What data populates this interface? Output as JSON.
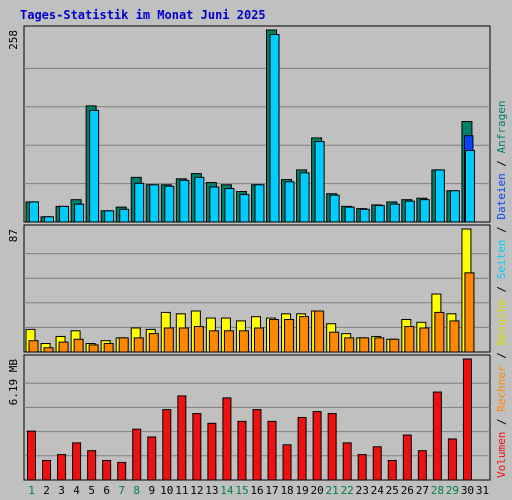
{
  "chart_data": {
    "type": "bar",
    "title": "Tages-Statistik im Monat Juni 2025",
    "days": [
      "1",
      "2",
      "3",
      "4",
      "5",
      "6",
      "7",
      "8",
      "9",
      "10",
      "11",
      "12",
      "13",
      "14",
      "15",
      "16",
      "17",
      "18",
      "19",
      "20",
      "21",
      "22",
      "23",
      "24",
      "25",
      "26",
      "27",
      "28",
      "29",
      "30",
      "31"
    ],
    "weekend_days": [
      "1",
      "7",
      "8",
      "14",
      "15",
      "21",
      "22",
      "28",
      "29"
    ],
    "panels": [
      {
        "id": "top",
        "max_label": "258",
        "max": 258,
        "series": [
          {
            "name": "Anfragen",
            "color": "#00806a",
            "values": [
              27,
              7,
              21,
              30,
              156,
              15,
              20,
              60,
              50,
              50,
              58,
              65,
              53,
              50,
              41,
              50,
              258,
              57,
              70,
              113,
              38,
              21,
              18,
              23,
              27,
              30,
              32,
              70,
              42,
              135
            ]
          },
          {
            "name": "Dateien",
            "color": "#0044ff",
            "values": [
              0,
              0,
              0,
              0,
              0,
              0,
              0,
              0,
              0,
              0,
              0,
              0,
              0,
              0,
              0,
              0,
              0,
              0,
              0,
              0,
              0,
              0,
              0,
              0,
              0,
              0,
              0,
              0,
              0,
              116
            ]
          },
          {
            "name": "Seiten",
            "color": "#00ccff",
            "values": [
              27,
              7,
              21,
              24,
              150,
              15,
              17,
              52,
              50,
              48,
              56,
              60,
              47,
              45,
              37,
              50,
              252,
              54,
              66,
              108,
              36,
              20,
              17,
              22,
              24,
              28,
              30,
              70,
              42,
              96
            ]
          }
        ]
      },
      {
        "id": "middle",
        "max_label": "87",
        "max": 87,
        "series": [
          {
            "name": "Besuche",
            "color": "#ffff00",
            "values": [
              16,
              6,
              11,
              15,
              6,
              8,
              10,
              17,
              16,
              28,
              27,
              29,
              24,
              24,
              22,
              25,
              24,
              27,
              27,
              29,
              20,
              13,
              10,
              11,
              9,
              23,
              21,
              41,
              27,
              87
            ]
          },
          {
            "name": "Rechner",
            "color": "#ff8800",
            "values": [
              8,
              3,
              7,
              9,
              5,
              6,
              10,
              10,
              13,
              17,
              17,
              18,
              15,
              15,
              15,
              17,
              23,
              23,
              25,
              29,
              14,
              10,
              10,
              10,
              9,
              18,
              17,
              28,
              22,
              56
            ]
          }
        ]
      },
      {
        "id": "bottom",
        "max_label": "6.19 MB",
        "max": 6.19,
        "series": [
          {
            "name": "Volumen",
            "color": "#ee1111",
            "values": [
              2.5,
              1.0,
              1.3,
              1.9,
              1.5,
              1.0,
              0.9,
              2.6,
              2.2,
              3.6,
              4.3,
              3.4,
              2.9,
              4.2,
              3.0,
              3.6,
              3.0,
              1.8,
              3.2,
              3.5,
              3.4,
              1.9,
              1.3,
              1.7,
              1.0,
              2.3,
              1.5,
              4.5,
              2.1,
              6.19
            ]
          }
        ]
      }
    ],
    "legend": [
      {
        "text": "Volumen",
        "color": "#ee1111"
      },
      {
        "text": "Rechner",
        "color": "#ff8800"
      },
      {
        "text": "Besuche",
        "color": "#dddd00"
      },
      {
        "text": "Seiten",
        "color": "#00ccff"
      },
      {
        "text": "Dateien",
        "color": "#0044ff"
      },
      {
        "text": "Anfragen",
        "color": "#00806a"
      }
    ],
    "legend_separator": " / ",
    "colors": {
      "background": "#c0c0c0",
      "plot_background": "#c0c0c0",
      "grid": "#808080",
      "axis_label": "#008040",
      "weekday_label": "#000000"
    }
  }
}
